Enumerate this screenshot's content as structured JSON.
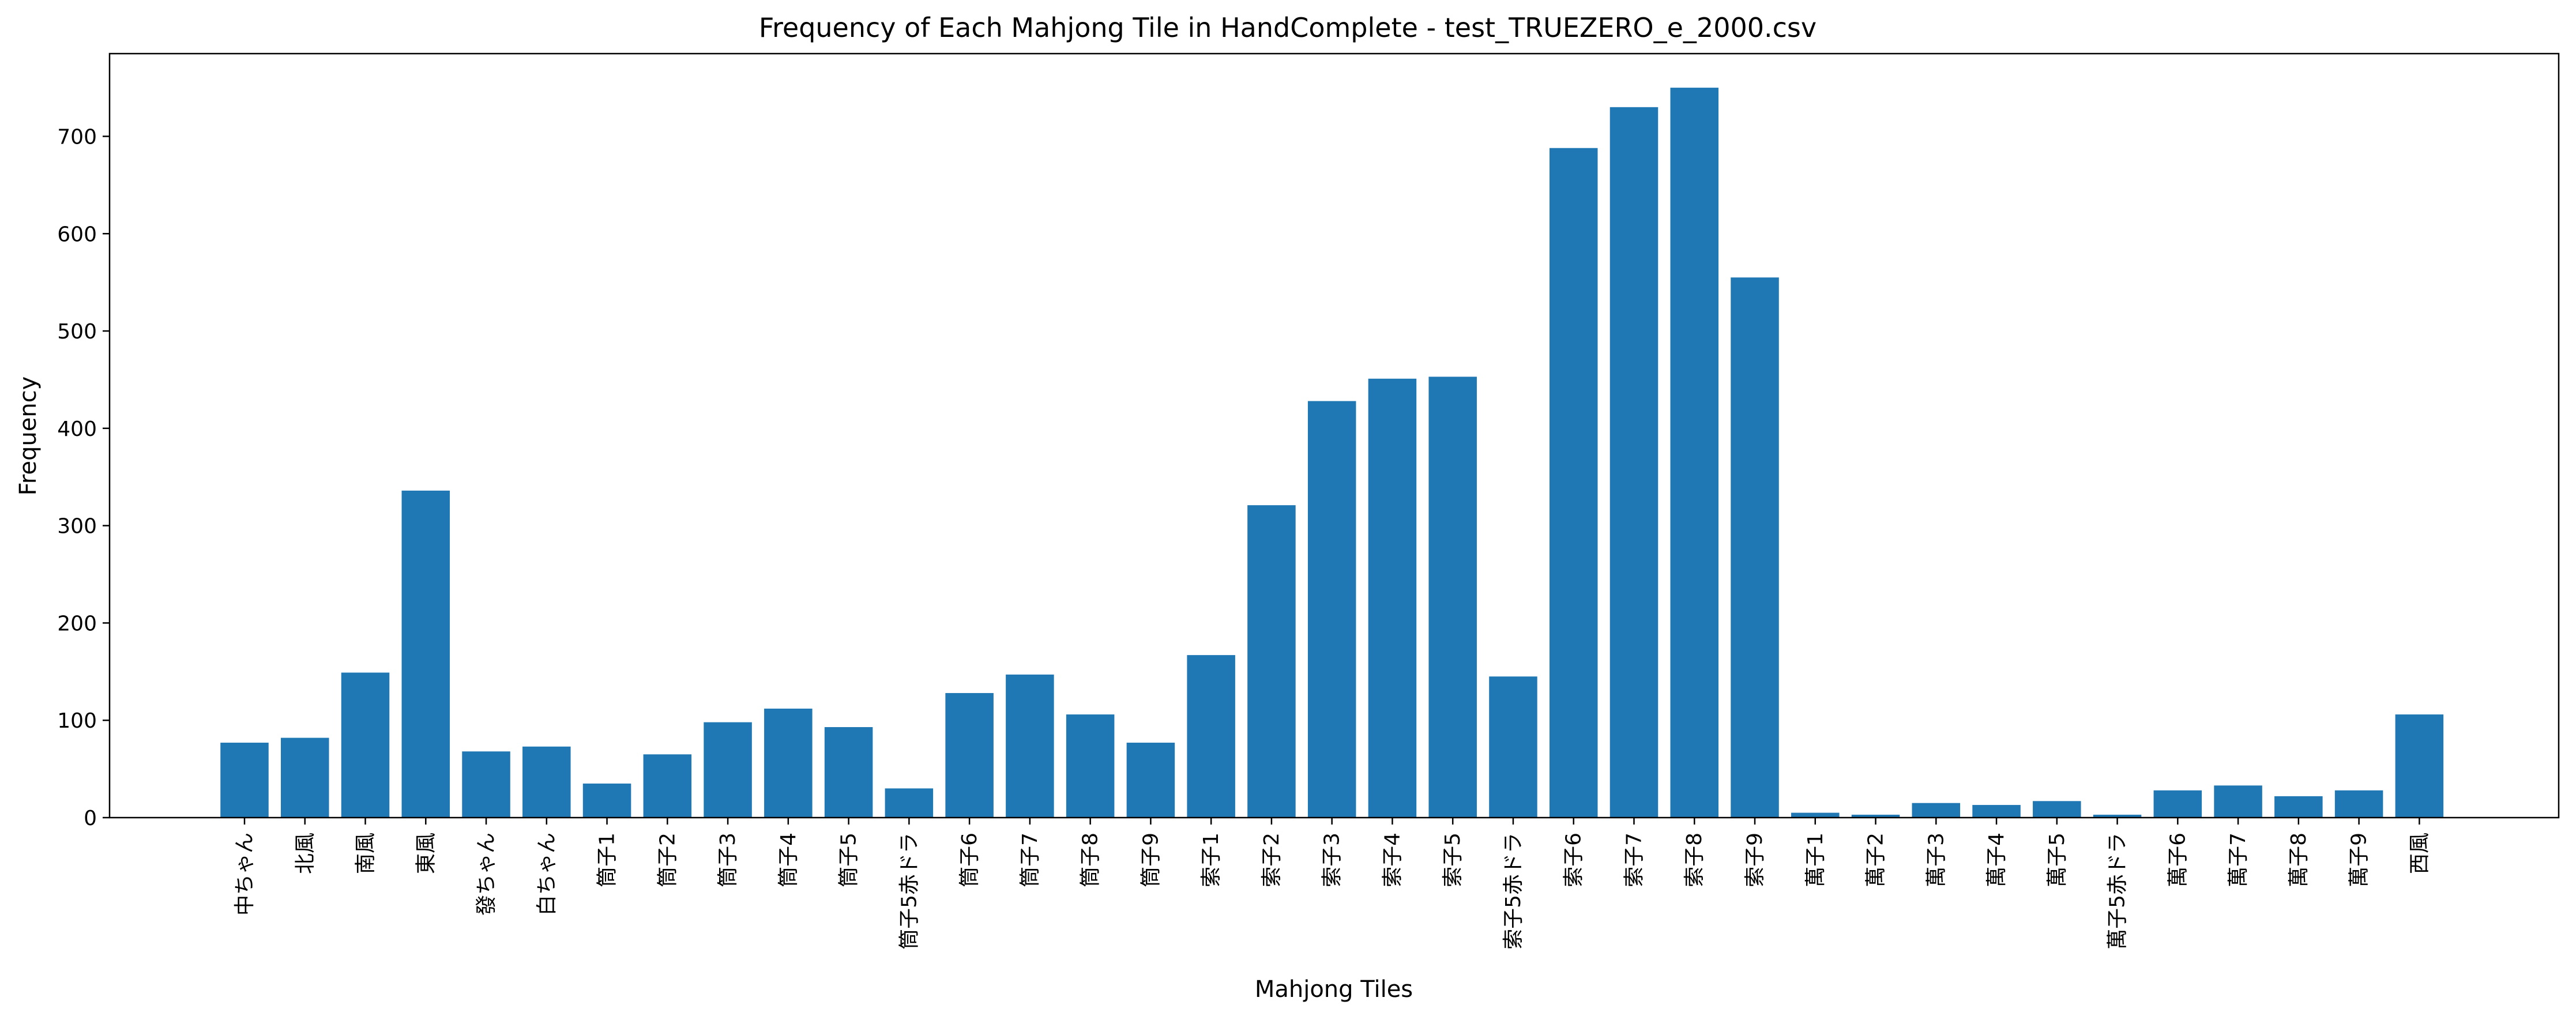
{
  "chart_data": {
    "type": "bar",
    "title": "Frequency of Each Mahjong Tile in HandComplete - test_TRUEZERO_e_2000.csv",
    "xlabel": "Mahjong Tiles",
    "ylabel": "Frequency",
    "ylim": [
      0,
      785
    ],
    "yticks": [
      0,
      100,
      200,
      300,
      400,
      500,
      600,
      700
    ],
    "grid": false,
    "legend": "none",
    "bar_color": "#1f77b4",
    "categories": [
      "中ちゃん",
      "北風",
      "南風",
      "東風",
      "發ちゃん",
      "白ちゃん",
      "筒子1",
      "筒子2",
      "筒子3",
      "筒子4",
      "筒子5",
      "筒子5赤ドラ",
      "筒子6",
      "筒子7",
      "筒子8",
      "筒子9",
      "索子1",
      "索子2",
      "索子3",
      "索子4",
      "索子5",
      "索子5赤ドラ",
      "索子6",
      "索子7",
      "索子8",
      "索子9",
      "萬子1",
      "萬子2",
      "萬子3",
      "萬子4",
      "萬子5",
      "萬子5赤ドラ",
      "萬子6",
      "萬子7",
      "萬子8",
      "萬子9",
      "西風"
    ],
    "values": [
      77,
      82,
      149,
      336,
      68,
      73,
      35,
      65,
      98,
      112,
      93,
      30,
      128,
      147,
      106,
      77,
      167,
      321,
      428,
      451,
      453,
      145,
      688,
      730,
      750,
      555,
      5,
      3,
      15,
      13,
      17,
      3,
      28,
      33,
      22,
      28,
      106
    ]
  }
}
